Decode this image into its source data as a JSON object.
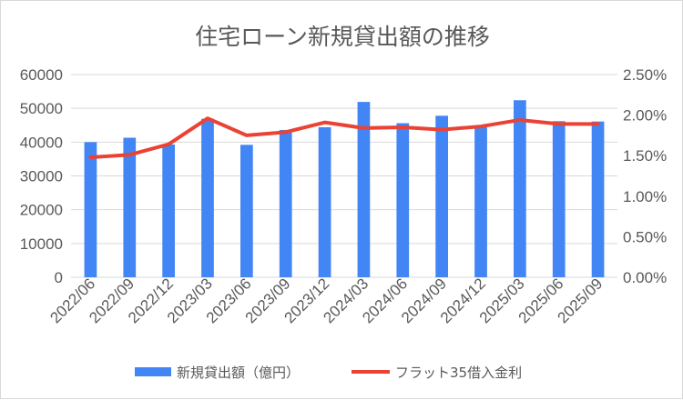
{
  "chart_data": {
    "type": "bar",
    "title": "住宅ローン新規貸出額の推移",
    "categories": [
      "2022/06",
      "2022/09",
      "2022/12",
      "2023/03",
      "2023/06",
      "2023/09",
      "2023/12",
      "2024/03",
      "2024/06",
      "2024/09",
      "2024/12",
      "2025/03",
      "2025/06",
      "2025/09"
    ],
    "series": [
      {
        "name": "新規貸出額（億円）",
        "type": "bar",
        "axis": "left",
        "color": "#4285f4",
        "values": [
          40000,
          41300,
          39300,
          46900,
          39200,
          43600,
          44400,
          51900,
          45600,
          47800,
          44800,
          52400,
          46200,
          46100
        ]
      },
      {
        "name": "フラット35借入金利",
        "type": "line",
        "axis": "right",
        "color": "#ea4335",
        "values": [
          1.48,
          1.51,
          1.64,
          1.96,
          1.75,
          1.79,
          1.91,
          1.84,
          1.85,
          1.82,
          1.86,
          1.94,
          1.89,
          1.89
        ]
      }
    ],
    "y_left": {
      "min": 0,
      "max": 60000,
      "step": 10000,
      "ticks": [
        "0",
        "10000",
        "20000",
        "30000",
        "40000",
        "50000",
        "60000"
      ]
    },
    "y_right": {
      "min": 0,
      "max": 2.5,
      "step": 0.5,
      "ticks": [
        "0.00%",
        "0.50%",
        "1.00%",
        "1.50%",
        "2.00%",
        "2.50%"
      ]
    },
    "grid": true,
    "legend_position": "bottom"
  }
}
